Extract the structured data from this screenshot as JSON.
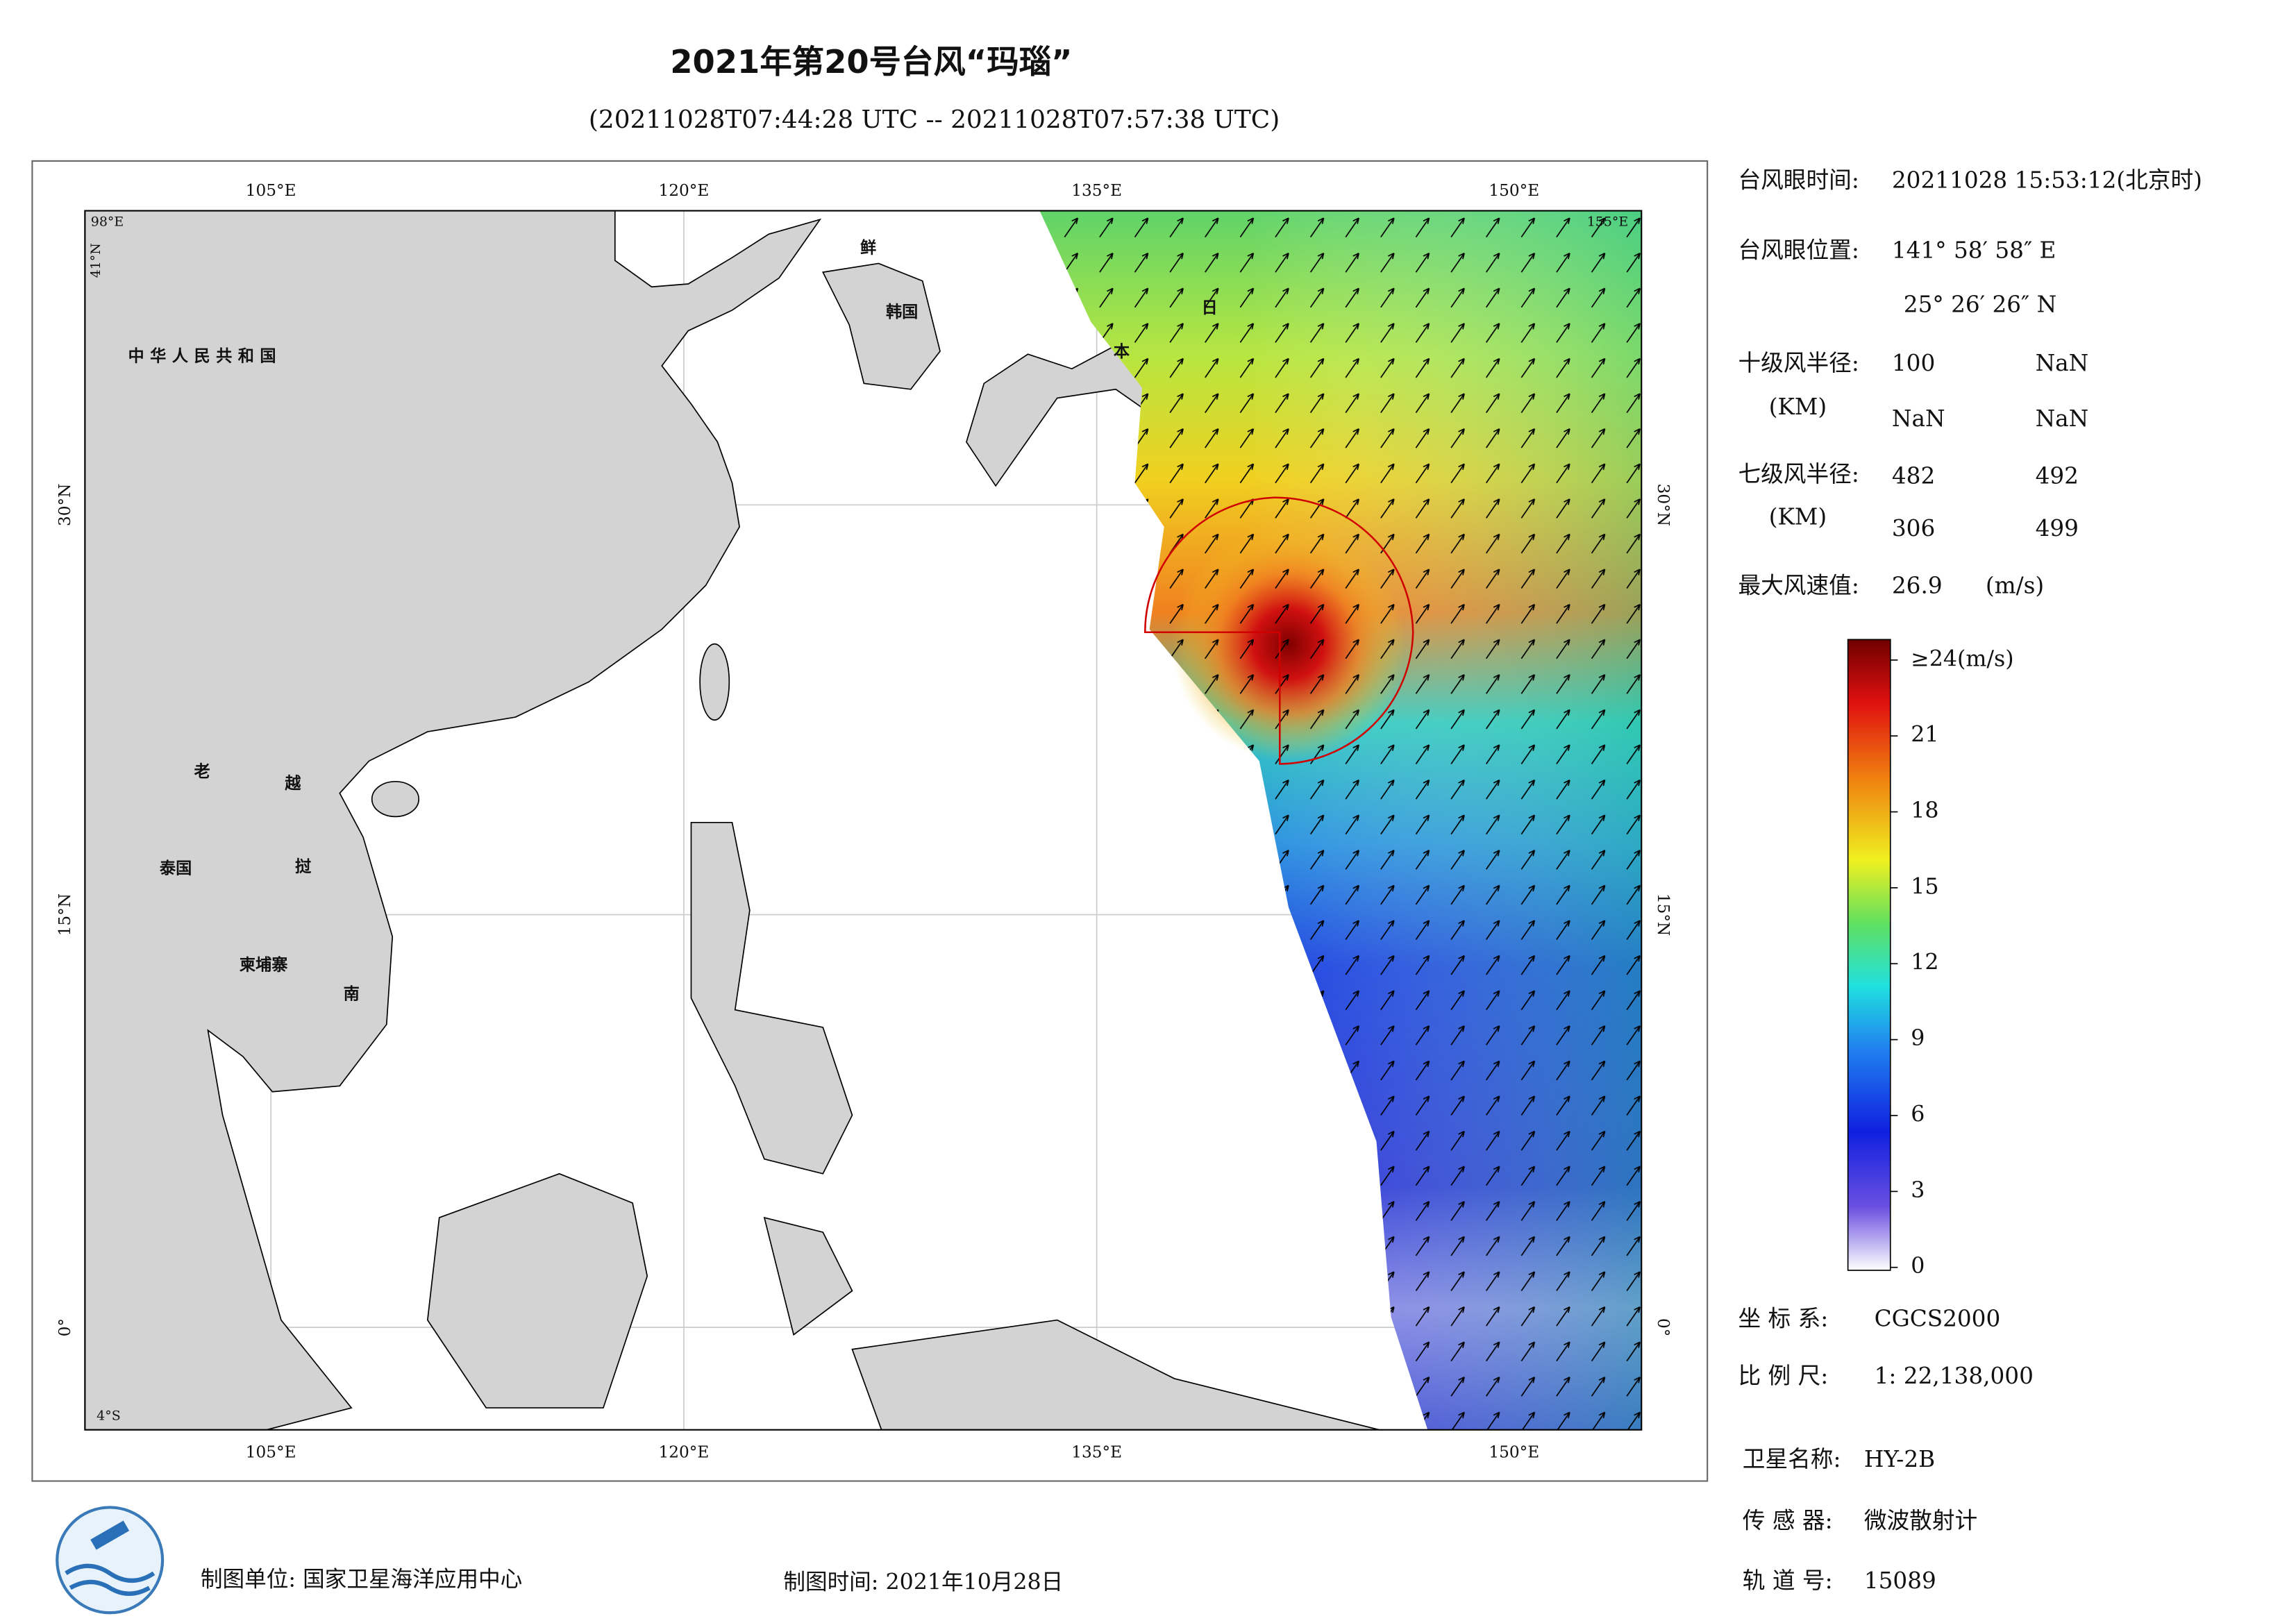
{
  "header": {
    "title": "2021年第20号台风“玛瑙”",
    "subtitle": "(20211028T07:44:28 UTC -- 20211028T07:57:38 UTC)"
  },
  "map": {
    "lon_labels": [
      "105°E",
      "120°E",
      "135°E",
      "150°E"
    ],
    "lat_labels": [
      "30°N",
      "15°N",
      "0°"
    ],
    "corner_labels": [
      "98°E",
      "41°N",
      "155°E",
      "4°S"
    ],
    "place_labels": [
      "中华人民共和国",
      "鲜",
      "韩国",
      "日",
      "本",
      "老",
      "越",
      "泰国",
      "挝",
      "柬埔寨",
      "南"
    ]
  },
  "info": {
    "eye_time_label": "台风眼时间:",
    "eye_time": "20211028 15:53:12(北京时)",
    "eye_pos_label": "台风眼位置:",
    "eye_lon": "141° 58′ 58″ E",
    "eye_lat": "25° 26′ 26″ N",
    "r10_label": "十级风半径:",
    "r10_unit": "(KM)",
    "r10": [
      "100",
      "NaN",
      "NaN",
      "NaN"
    ],
    "r7_label": "七级风半径:",
    "r7_unit": "(KM)",
    "r7": [
      "482",
      "492",
      "306",
      "499"
    ],
    "vmax_label": "最大风速值:",
    "vmax": "26.9",
    "vmax_unit": "(m/s)"
  },
  "colorbar": {
    "range": [
      0,
      24
    ],
    "ticks": [
      0,
      3,
      6,
      9,
      12,
      15,
      18,
      21,
      {
        "value": 24,
        "label": "≥24(m/s)"
      }
    ]
  },
  "meta": {
    "crs_label": "坐 标 系:",
    "crs": "CGCS2000",
    "scale_label": "比 例 尺:",
    "scale": "1: 22,138,000",
    "sat_label": "卫星名称:",
    "sat": "HY-2B",
    "sensor_label": "传 感 器:",
    "sensor": "微波散射计",
    "orbit_label": "轨 道 号:",
    "orbit": "15089"
  },
  "footer": {
    "producer": "制图单位: 国家卫星海洋应用中心",
    "date": "制图时间: 2021年10月28日"
  }
}
